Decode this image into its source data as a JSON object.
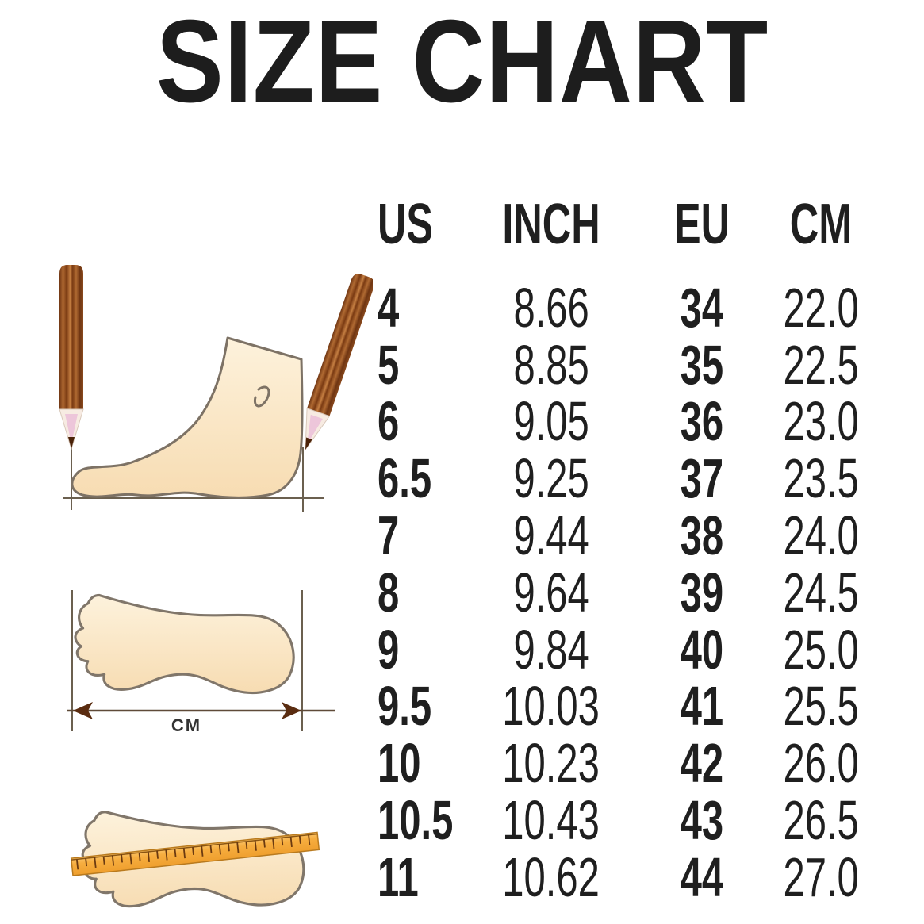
{
  "title": "SIZE CHART",
  "chart_data": {
    "type": "table",
    "columns": [
      "US",
      "INCH",
      "EU",
      "CM"
    ],
    "rows": [
      [
        "4",
        "8.66",
        "34",
        "22.0"
      ],
      [
        "5",
        "8.85",
        "35",
        "22.5"
      ],
      [
        "6",
        "9.05",
        "36",
        "23.0"
      ],
      [
        "6.5",
        "9.25",
        "37",
        "23.5"
      ],
      [
        "7",
        "9.44",
        "38",
        "24.0"
      ],
      [
        "8",
        "9.64",
        "39",
        "24.5"
      ],
      [
        "9",
        "9.84",
        "40",
        "25.0"
      ],
      [
        "9.5",
        "10.03",
        "41",
        "25.5"
      ],
      [
        "10",
        "10.23",
        "42",
        "26.0"
      ],
      [
        "10.5",
        "10.43",
        "43",
        "26.5"
      ],
      [
        "11",
        "10.62",
        "44",
        "27.0"
      ]
    ]
  },
  "illustration_labels": {
    "cm": "CM"
  },
  "icons": {
    "pencil": "pencil-icon",
    "foot_side": "foot-side-view-icon",
    "footprint": "footprint-icon",
    "measure_arrow": "double-headed-arrow-icon",
    "ruler": "ruler-icon"
  },
  "colors": {
    "text": "#1f1f1f",
    "background": "#ffffff",
    "foot_fill_light": "#fdf2dc",
    "foot_fill_dark": "#f7dcb2",
    "foot_outline": "#7d7265",
    "pencil_brown": "#8a4a1e",
    "arrow_brown": "#5a2c10",
    "guide_line": "#6b604f",
    "ruler_orange": "#f5ab3c",
    "ruler_edge": "#b97a1e"
  }
}
